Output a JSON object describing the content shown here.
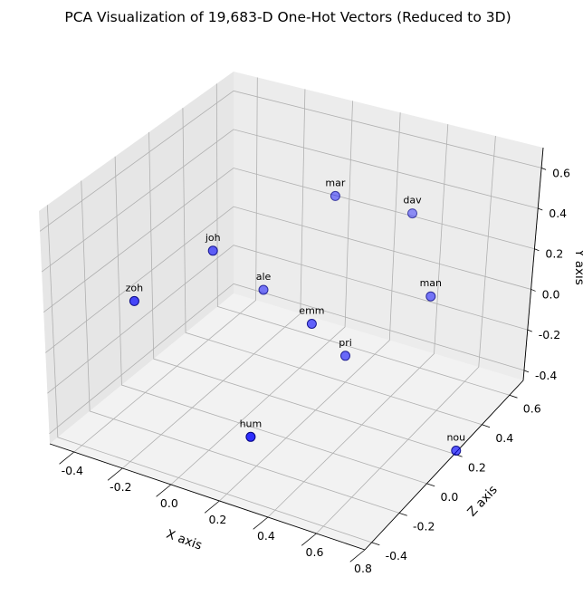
{
  "chart_data": {
    "type": "scatter",
    "projection": "3d",
    "title": "PCA Visualization of 19,683-D One-Hot Vectors (Reduced to 3D)",
    "xlabel": "X axis",
    "ylabel": "Y axis",
    "zlabel": "Z axis",
    "grid": true,
    "xlim": [
      -0.5,
      0.8
    ],
    "ylim": [
      -0.45,
      0.7
    ],
    "zlim": [
      -0.45,
      0.7
    ],
    "xticks": [
      "-0.4",
      "-0.2",
      "0.0",
      "0.2",
      "0.4",
      "0.6",
      "0.8"
    ],
    "yticks": [
      "-0.4",
      "-0.2",
      "0.0",
      "0.2",
      "0.4",
      "0.6"
    ],
    "zticks": [
      "-0.4",
      "-0.2",
      "0.0",
      "0.2",
      "0.4",
      "0.6"
    ],
    "marker_color": "#0000ff",
    "marker_edge_color": "#000080",
    "points": [
      {
        "label": "mar",
        "x": 0.05,
        "y": 0.35,
        "z": 0.55
      },
      {
        "label": "dav",
        "x": 0.3,
        "y": 0.3,
        "z": 0.65
      },
      {
        "label": "joh",
        "x": -0.3,
        "y": 0.1,
        "z": 0.3
      },
      {
        "label": "man",
        "x": 0.5,
        "y": 0.1,
        "z": 0.45
      },
      {
        "label": "zoh",
        "x": -0.5,
        "y": -0.1,
        "z": 0.1
      },
      {
        "label": "ale",
        "x": -0.2,
        "y": -0.15,
        "z": 0.45
      },
      {
        "label": "emm",
        "x": 0.1,
        "y": -0.1,
        "z": 0.3
      },
      {
        "label": "pri",
        "x": 0.2,
        "y": -0.25,
        "z": 0.35
      },
      {
        "label": "hum",
        "x": 0.1,
        "y": -0.4,
        "z": -0.1
      },
      {
        "label": "nou",
        "x": 0.75,
        "y": -0.4,
        "z": 0.2
      }
    ]
  }
}
